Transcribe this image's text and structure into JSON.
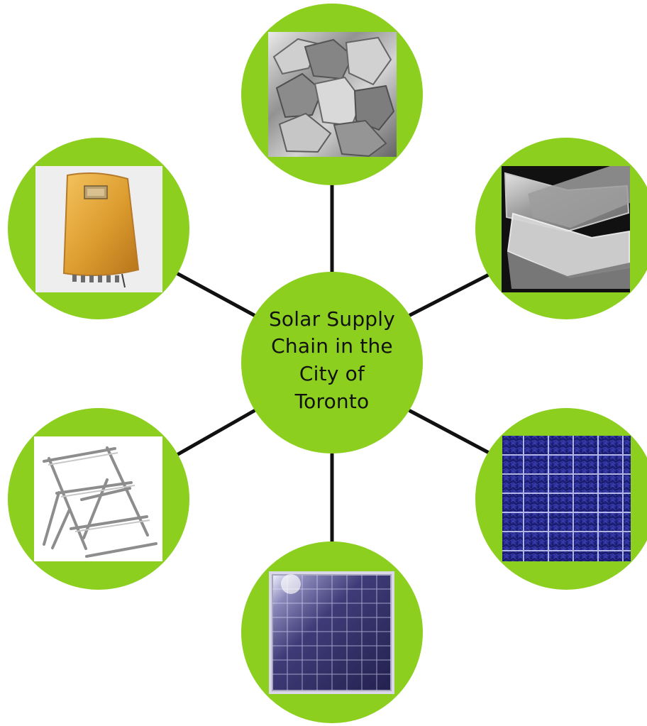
{
  "diagram": {
    "center_label": "Solar Supply\nChain in the\nCity of\nToronto",
    "colors": {
      "green": "#8ccf1f",
      "connector": "#111111",
      "background": "#ffffff"
    },
    "nodes": [
      {
        "name": "silicon-raw-material-image"
      },
      {
        "name": "silicon-wafer-image"
      },
      {
        "name": "solar-cell-image"
      },
      {
        "name": "solar-panel-module-image"
      },
      {
        "name": "mounting-racking-image"
      },
      {
        "name": "inverter-image"
      }
    ]
  }
}
